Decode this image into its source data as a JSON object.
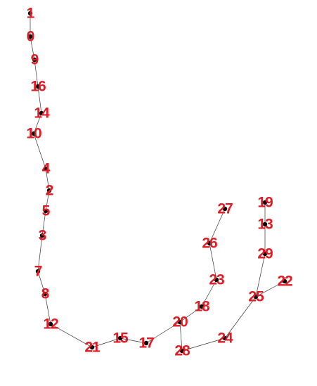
{
  "graph": {
    "colors": {
      "label": "#e01b24",
      "node": "#000000",
      "edge": "#333333"
    },
    "nodes": [
      {
        "id": "1",
        "label": "1"
      },
      {
        "id": "0",
        "label": "0"
      },
      {
        "id": "9",
        "label": "9"
      },
      {
        "id": "16",
        "label": "16"
      },
      {
        "id": "14",
        "label": "14"
      },
      {
        "id": "10",
        "label": "10"
      },
      {
        "id": "4",
        "label": "4"
      },
      {
        "id": "2",
        "label": "2"
      },
      {
        "id": "5",
        "label": "5"
      },
      {
        "id": "3",
        "label": "3"
      },
      {
        "id": "7",
        "label": "7"
      },
      {
        "id": "8",
        "label": "8"
      },
      {
        "id": "12",
        "label": "12"
      },
      {
        "id": "21",
        "label": "21"
      },
      {
        "id": "15",
        "label": "15"
      },
      {
        "id": "17",
        "label": "17"
      },
      {
        "id": "20",
        "label": "20"
      },
      {
        "id": "18",
        "label": "18"
      },
      {
        "id": "23",
        "label": "23"
      },
      {
        "id": "26",
        "label": "26"
      },
      {
        "id": "27",
        "label": "27"
      },
      {
        "id": "28",
        "label": "28"
      },
      {
        "id": "24",
        "label": "24"
      },
      {
        "id": "25",
        "label": "25"
      },
      {
        "id": "22",
        "label": "22"
      },
      {
        "id": "29",
        "label": "29"
      },
      {
        "id": "13",
        "label": "13"
      },
      {
        "id": "19",
        "label": "19"
      }
    ],
    "edges": [
      [
        "1",
        "0"
      ],
      [
        "0",
        "9"
      ],
      [
        "9",
        "16"
      ],
      [
        "16",
        "14"
      ],
      [
        "14",
        "10"
      ],
      [
        "10",
        "4"
      ],
      [
        "4",
        "2"
      ],
      [
        "2",
        "5"
      ],
      [
        "5",
        "3"
      ],
      [
        "3",
        "7"
      ],
      [
        "7",
        "8"
      ],
      [
        "8",
        "12"
      ],
      [
        "12",
        "21"
      ],
      [
        "21",
        "15"
      ],
      [
        "15",
        "17"
      ],
      [
        "17",
        "20"
      ],
      [
        "20",
        "18"
      ],
      [
        "18",
        "23"
      ],
      [
        "23",
        "26"
      ],
      [
        "26",
        "27"
      ],
      [
        "20",
        "28"
      ],
      [
        "28",
        "24"
      ],
      [
        "24",
        "25"
      ],
      [
        "25",
        "22"
      ],
      [
        "25",
        "29"
      ],
      [
        "29",
        "13"
      ],
      [
        "13",
        "19"
      ]
    ]
  }
}
